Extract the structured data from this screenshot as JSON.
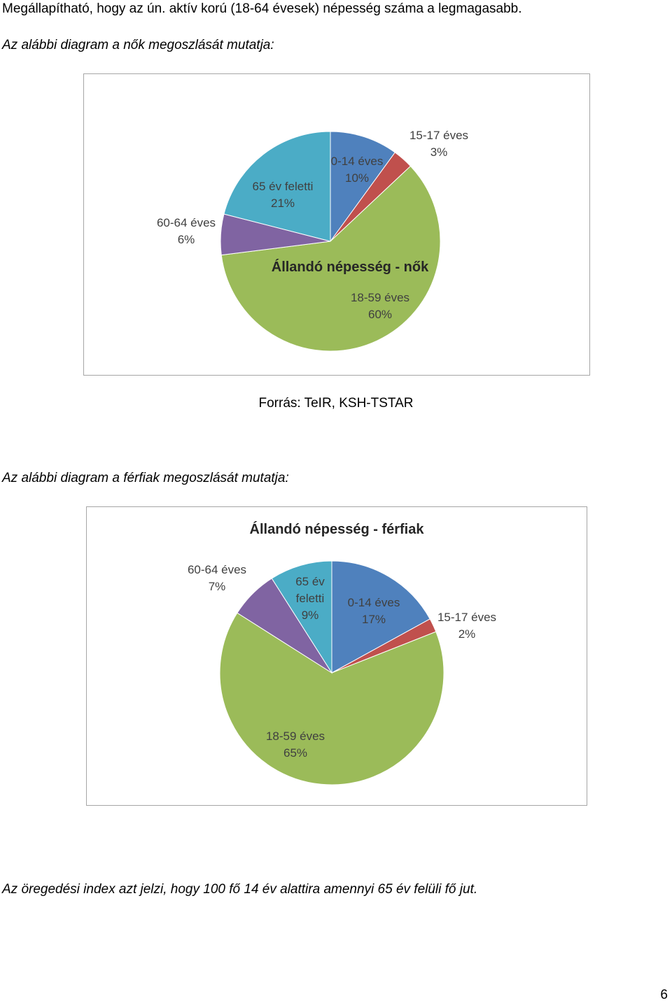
{
  "intro_text": "Megállapítható, hogy az ún. aktív korú (18-64 évesek) népesség száma a legmagasabb.",
  "women_caption": "Az alábbi diagram a nők megoszlását mutatja:",
  "source_text": "Forrás: TeIR, KSH-TSTAR",
  "men_caption": "Az alábbi diagram a férfiak megoszlását mutatja:",
  "aging_text": "Az öregedési index azt jelzi, hogy 100 fő 14 év alattira amennyi 65 év felüli fő jut.",
  "page_number": "6",
  "chart_data": [
    {
      "type": "pie",
      "title": "Állandó népesség - nők",
      "categories": [
        "0-14 éves",
        "15-17 éves",
        "18-59 éves",
        "60-64 éves",
        "65 év feletti"
      ],
      "values": [
        10,
        3,
        60,
        6,
        21
      ],
      "value_labels": [
        "10%",
        "3%",
        "60%",
        "6%",
        "21%"
      ],
      "colors": [
        "#4f81bd",
        "#c0504d",
        "#9bbb59",
        "#8064a2",
        "#4bacc6"
      ]
    },
    {
      "type": "pie",
      "title": "Állandó népesség - férfiak",
      "categories": [
        "0-14 éves",
        "15-17 éves",
        "18-59 éves",
        "60-64 éves",
        "65 év feletti"
      ],
      "values": [
        17,
        2,
        65,
        7,
        9
      ],
      "value_labels": [
        "17%",
        "2%",
        "65%",
        "7%",
        "9%"
      ],
      "colors": [
        "#4f81bd",
        "#c0504d",
        "#9bbb59",
        "#8064a2",
        "#4bacc6"
      ]
    }
  ]
}
